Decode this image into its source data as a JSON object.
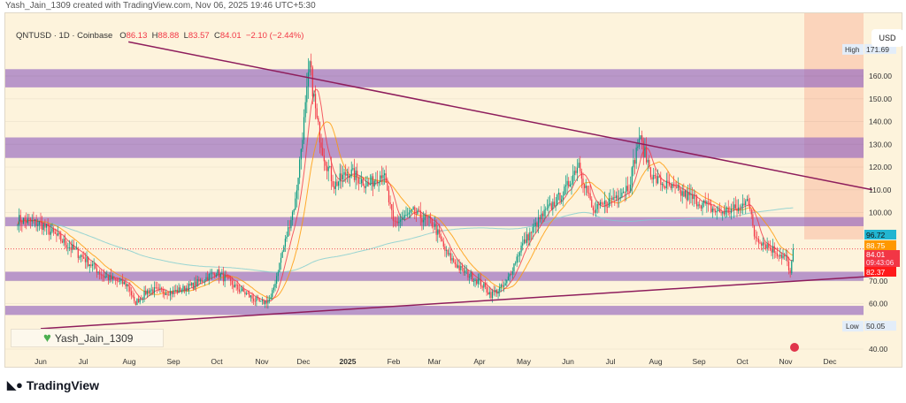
{
  "header": {
    "credit": "Yash_Jain_1309 created with TradingView.com, Nov 06, 2025 19:46 UTC+5:30"
  },
  "legend": {
    "symbol": "QNTUSD · 1D · Coinbase",
    "o_label": "O",
    "o": "86.13",
    "h_label": "H",
    "h": "88.88",
    "l_label": "L",
    "l": "83.57",
    "c_label": "C",
    "c": "84.01",
    "change": "−2.10 (−2.44%)"
  },
  "watermark": "Yash_Jain_1309",
  "footer": {
    "brand": "TradingView"
  },
  "colors": {
    "up": "#089981",
    "down": "#f23645",
    "zone": "#9b6fc0",
    "trend": "#8e1d5c",
    "bg": "#fdf3dc",
    "projection": "#f9c9b0",
    "ma_fast": "#f23645",
    "ma_mid": "#ff9800",
    "ma_slow": "#7fcdd0"
  },
  "chart_data": {
    "type": "candlestick",
    "currency": "USD",
    "ylim": [
      40,
      175
    ],
    "y_ticks": [
      "160.00",
      "150.00",
      "140.00",
      "130.00",
      "120.00",
      "110.00",
      "100.00",
      "70.00",
      "60.00",
      "40.00"
    ],
    "x_ticks": [
      "Jun",
      "Jul",
      "Aug",
      "Sep",
      "Oct",
      "Nov",
      "Dec",
      "2025",
      "Feb",
      "Mar",
      "Apr",
      "May",
      "Jun",
      "Jul",
      "Aug",
      "Sep",
      "Oct",
      "Nov",
      "Dec"
    ],
    "price_labels": {
      "high_label": "High",
      "high": "171.69",
      "low_label": "Low",
      "low": "50.05",
      "ma_slow": "96.72",
      "ma_mid": "88.75",
      "last": "84.01",
      "countdown": "09:43:06",
      "ma_fast": "82.37"
    },
    "zones": [
      [
        155,
        163
      ],
      [
        124,
        133
      ],
      [
        94,
        98
      ],
      [
        70,
        74
      ],
      [
        55,
        59
      ]
    ],
    "trendlines": [
      {
        "from": [
          "2024-08-01",
          175
        ],
        "to": [
          "2025-12-31",
          110
        ]
      },
      {
        "from": [
          "2024-06-01",
          49
        ],
        "to": [
          "2025-12-31",
          72
        ]
      }
    ],
    "closes": [
      [
        "2024-05-16",
        97
      ],
      [
        "2024-06-01",
        95
      ],
      [
        "2024-06-15",
        88
      ],
      [
        "2024-07-01",
        80
      ],
      [
        "2024-07-15",
        72
      ],
      [
        "2024-08-01",
        68
      ],
      [
        "2024-08-05",
        60
      ],
      [
        "2024-08-15",
        66
      ],
      [
        "2024-09-01",
        65
      ],
      [
        "2024-09-15",
        68
      ],
      [
        "2024-10-01",
        74
      ],
      [
        "2024-10-15",
        67
      ],
      [
        "2024-11-01",
        60
      ],
      [
        "2024-11-08",
        62
      ],
      [
        "2024-11-15",
        80
      ],
      [
        "2024-11-25",
        105
      ],
      [
        "2024-12-01",
        140
      ],
      [
        "2024-12-05",
        165
      ],
      [
        "2024-12-10",
        140
      ],
      [
        "2024-12-15",
        125
      ],
      [
        "2024-12-22",
        112
      ],
      [
        "2025-01-01",
        118
      ],
      [
        "2025-01-15",
        112
      ],
      [
        "2025-01-25",
        118
      ],
      [
        "2025-02-01",
        95
      ],
      [
        "2025-02-15",
        100
      ],
      [
        "2025-03-01",
        95
      ],
      [
        "2025-03-10",
        82
      ],
      [
        "2025-03-20",
        75
      ],
      [
        "2025-04-01",
        70
      ],
      [
        "2025-04-10",
        64
      ],
      [
        "2025-04-20",
        68
      ],
      [
        "2025-05-01",
        85
      ],
      [
        "2025-05-15",
        98
      ],
      [
        "2025-06-01",
        110
      ],
      [
        "2025-06-10",
        122
      ],
      [
        "2025-06-20",
        100
      ],
      [
        "2025-07-01",
        105
      ],
      [
        "2025-07-15",
        112
      ],
      [
        "2025-07-22",
        133
      ],
      [
        "2025-08-01",
        115
      ],
      [
        "2025-08-15",
        110
      ],
      [
        "2025-09-01",
        105
      ],
      [
        "2025-09-15",
        100
      ],
      [
        "2025-10-01",
        102
      ],
      [
        "2025-10-05",
        108
      ],
      [
        "2025-10-10",
        90
      ],
      [
        "2025-10-20",
        85
      ],
      [
        "2025-11-01",
        80
      ],
      [
        "2025-11-04",
        72
      ],
      [
        "2025-11-06",
        84
      ]
    ]
  }
}
